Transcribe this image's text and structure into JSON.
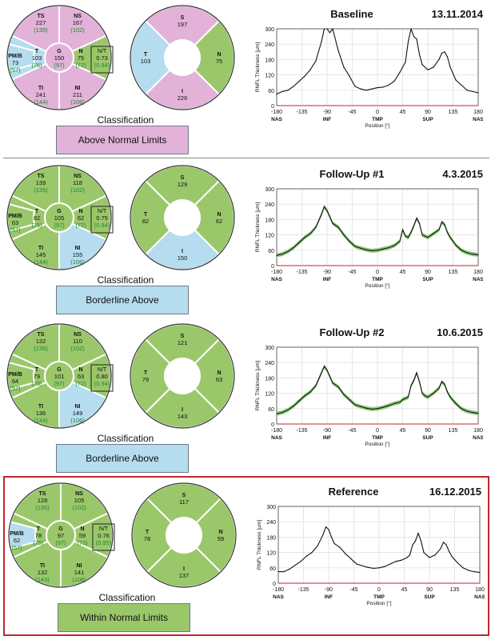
{
  "colors": {
    "green": "#9bc76b",
    "blue": "#b5dcef",
    "pink": "#e2b2d9",
    "normal_value": "#1a8a2a",
    "reference_border": "#c0262c",
    "trace": "#111111",
    "band": "#7fc36b",
    "baseline_red": "#c0262c"
  },
  "classification_label": "Classification",
  "axis": {
    "x_ticks": [
      "-180",
      "-135",
      "-90",
      "-45",
      "0",
      "45",
      "90",
      "135",
      "180"
    ],
    "x_ticks_values": [
      -180,
      -135,
      -90,
      -45,
      0,
      45,
      90,
      135,
      180
    ],
    "x_sublabels": [
      "NAS",
      "INF",
      "TMP",
      "SUP",
      "NAS"
    ],
    "x_sublabels_at": [
      -180,
      -90,
      0,
      90,
      180
    ],
    "y_ticks": [
      "0",
      "60",
      "120",
      "180",
      "240",
      "300"
    ],
    "ylabel": "RNFL Thickness [µm]",
    "xlabel": "Position [°]"
  },
  "panels": [
    {
      "title": "Baseline",
      "date": "13.11.2014",
      "classification": "Above Normal Limits",
      "class_color": "pink",
      "sectors": {
        "TS": {
          "label": "TS",
          "value": "227",
          "normal": "(135)",
          "color": "pink"
        },
        "NS": {
          "label": "NS",
          "value": "167",
          "normal": "(102)",
          "color": "pink"
        },
        "T": {
          "label": "T",
          "value": "103",
          "normal": "(76)",
          "color": "blue"
        },
        "G": {
          "label": "G",
          "value": "150",
          "normal": "(97)",
          "color": "pink"
        },
        "N": {
          "label": "N",
          "value": "75",
          "normal": "(72)",
          "color": "green"
        },
        "TI": {
          "label": "TI",
          "value": "241",
          "normal": "(144)",
          "color": "pink"
        },
        "NI": {
          "label": "NI",
          "value": "211",
          "normal": "(106)",
          "color": "pink"
        },
        "PMB": {
          "label": "PM/B",
          "value": "73",
          "normal": "(57)",
          "color": "blue"
        },
        "NT": {
          "label": "N/T",
          "value": "0.73",
          "normal": "(0.94)"
        }
      },
      "quadrants": {
        "S": {
          "label": "S",
          "value": "197",
          "color": "pink"
        },
        "T": {
          "label": "T",
          "value": "103",
          "color": "blue"
        },
        "N": {
          "label": "N",
          "value": "75",
          "color": "green"
        },
        "I": {
          "label": "I",
          "value": "226",
          "color": "pink"
        }
      },
      "has_band": false,
      "chart_data": {
        "type": "line",
        "x": [
          -180,
          -170,
          -160,
          -150,
          -140,
          -130,
          -120,
          -110,
          -100,
          -95,
          -90,
          -85,
          -80,
          -70,
          -60,
          -50,
          -45,
          -40,
          -30,
          -20,
          -10,
          0,
          10,
          20,
          30,
          40,
          45,
          50,
          55,
          60,
          65,
          70,
          75,
          80,
          85,
          90,
          100,
          110,
          115,
          120,
          125,
          130,
          140,
          150,
          160,
          170,
          180
        ],
        "y": [
          45,
          55,
          60,
          75,
          95,
          115,
          140,
          175,
          250,
          300,
          300,
          285,
          300,
          215,
          150,
          115,
          95,
          75,
          65,
          60,
          65,
          70,
          72,
          80,
          95,
          130,
          150,
          170,
          250,
          300,
          270,
          260,
          200,
          160,
          150,
          140,
          150,
          180,
          205,
          210,
          190,
          150,
          100,
          80,
          60,
          55,
          50
        ],
        "series": [
          {
            "name": "",
            "color": "#111111"
          }
        ],
        "xlim": [
          -180,
          180
        ],
        "ylim": [
          0,
          300
        ]
      }
    },
    {
      "title": "Follow-Up #1",
      "date": "4.3.2015",
      "classification": "Borderline Above",
      "class_color": "blue",
      "sectors": {
        "TS": {
          "label": "TS",
          "value": "139",
          "normal": "(135)",
          "color": "green"
        },
        "NS": {
          "label": "NS",
          "value": "118",
          "normal": "(102)",
          "color": "green"
        },
        "T": {
          "label": "T",
          "value": "82",
          "normal": "(75)",
          "color": "green"
        },
        "G": {
          "label": "G",
          "value": "105",
          "normal": "(97)",
          "color": "green"
        },
        "N": {
          "label": "N",
          "value": "62",
          "normal": "(72)",
          "color": "green"
        },
        "TI": {
          "label": "TI",
          "value": "145",
          "normal": "(144)",
          "color": "green"
        },
        "NI": {
          "label": "NI",
          "value": "155",
          "normal": "(106)",
          "color": "blue"
        },
        "PMB": {
          "label": "PM/B",
          "value": "63",
          "normal": "(57)",
          "color": "green"
        },
        "NT": {
          "label": "N/T",
          "value": "0.75",
          "normal": "(0.94)"
        }
      },
      "quadrants": {
        "S": {
          "label": "S",
          "value": "129",
          "color": "green"
        },
        "T": {
          "label": "T",
          "value": "82",
          "color": "green"
        },
        "N": {
          "label": "N",
          "value": "62",
          "color": "green"
        },
        "I": {
          "label": "I",
          "value": "150",
          "color": "blue"
        }
      },
      "has_band": true,
      "chart_data": {
        "type": "line",
        "x": [
          -180,
          -170,
          -160,
          -150,
          -140,
          -130,
          -120,
          -110,
          -100,
          -95,
          -90,
          -85,
          -80,
          -70,
          -60,
          -50,
          -45,
          -40,
          -30,
          -20,
          -10,
          0,
          10,
          20,
          30,
          40,
          45,
          50,
          55,
          60,
          65,
          70,
          75,
          80,
          85,
          90,
          100,
          110,
          115,
          120,
          125,
          130,
          140,
          150,
          160,
          170,
          180
        ],
        "y": [
          40,
          45,
          55,
          70,
          90,
          110,
          125,
          150,
          200,
          230,
          215,
          190,
          165,
          150,
          120,
          95,
          85,
          75,
          68,
          62,
          58,
          60,
          65,
          70,
          78,
          95,
          140,
          115,
          110,
          130,
          155,
          185,
          165,
          120,
          115,
          110,
          125,
          140,
          170,
          160,
          130,
          110,
          80,
          60,
          50,
          45,
          42
        ],
        "series": [
          {
            "name": "",
            "color": "#111111"
          }
        ],
        "xlim": [
          -180,
          180
        ],
        "ylim": [
          0,
          300
        ]
      }
    },
    {
      "title": "Follow-Up #2",
      "date": "10.6.2015",
      "classification": "Borderline Above",
      "class_color": "blue",
      "sectors": {
        "TS": {
          "label": "TS",
          "value": "132",
          "normal": "(135)",
          "color": "green"
        },
        "NS": {
          "label": "NS",
          "value": "110",
          "normal": "(102)",
          "color": "green"
        },
        "T": {
          "label": "T",
          "value": "79",
          "normal": "(75)",
          "color": "green"
        },
        "G": {
          "label": "G",
          "value": "101",
          "normal": "(97)",
          "color": "green"
        },
        "N": {
          "label": "N",
          "value": "63",
          "normal": "(72)",
          "color": "green"
        },
        "TI": {
          "label": "TI",
          "value": "136",
          "normal": "(144)",
          "color": "green"
        },
        "NI": {
          "label": "NI",
          "value": "149",
          "normal": "(106)",
          "color": "blue"
        },
        "PMB": {
          "label": "PM/B",
          "value": "64",
          "normal": "(57)",
          "color": "green"
        },
        "NT": {
          "label": "N/T",
          "value": "0.80",
          "normal": "(0.94)"
        }
      },
      "quadrants": {
        "S": {
          "label": "S",
          "value": "121",
          "color": "green"
        },
        "T": {
          "label": "T",
          "value": "79",
          "color": "green"
        },
        "N": {
          "label": "N",
          "value": "63",
          "color": "green"
        },
        "I": {
          "label": "I",
          "value": "143",
          "color": "green"
        }
      },
      "has_band": true,
      "chart_data": {
        "type": "line",
        "x": [
          -180,
          -170,
          -160,
          -150,
          -140,
          -130,
          -120,
          -110,
          -100,
          -95,
          -90,
          -85,
          -80,
          -70,
          -60,
          -50,
          -45,
          -40,
          -30,
          -20,
          -10,
          0,
          10,
          20,
          30,
          40,
          45,
          50,
          55,
          60,
          65,
          70,
          75,
          80,
          85,
          90,
          100,
          110,
          115,
          120,
          125,
          130,
          140,
          150,
          160,
          170,
          180
        ],
        "y": [
          40,
          45,
          55,
          70,
          90,
          110,
          125,
          150,
          200,
          225,
          210,
          185,
          160,
          145,
          115,
          95,
          85,
          75,
          68,
          62,
          58,
          60,
          65,
          72,
          80,
          85,
          95,
          100,
          105,
          150,
          170,
          200,
          165,
          120,
          110,
          105,
          120,
          140,
          165,
          155,
          125,
          105,
          80,
          60,
          50,
          45,
          42
        ],
        "series": [
          {
            "name": "",
            "color": "#111111"
          }
        ],
        "xlim": [
          -180,
          180
        ],
        "ylim": [
          0,
          300
        ]
      }
    },
    {
      "title": "Reference",
      "date": "16.12.2015",
      "classification": "Within Normal Limits",
      "class_color": "green",
      "sectors": {
        "TS": {
          "label": "TS",
          "value": "128",
          "normal": "(135)",
          "color": "green"
        },
        "NS": {
          "label": "NS",
          "value": "105",
          "normal": "(102)",
          "color": "green"
        },
        "T": {
          "label": "T",
          "value": "78",
          "normal": "(75)",
          "color": "green"
        },
        "G": {
          "label": "G",
          "value": "97",
          "normal": "(97)",
          "color": "green"
        },
        "N": {
          "label": "N",
          "value": "59",
          "normal": "(72)",
          "color": "green"
        },
        "TI": {
          "label": "TI",
          "value": "132",
          "normal": "(143)",
          "color": "green"
        },
        "NI": {
          "label": "NI",
          "value": "141",
          "normal": "(106)",
          "color": "green"
        },
        "PMB": {
          "label": "PM/B",
          "value": "62",
          "normal": "(57)",
          "color": "blue"
        },
        "NT": {
          "label": "N/T",
          "value": "0.76",
          "normal": "(0.95)"
        }
      },
      "quadrants": {
        "S": {
          "label": "S",
          "value": "117",
          "color": "green"
        },
        "T": {
          "label": "T",
          "value": "78",
          "color": "green"
        },
        "N": {
          "label": "N",
          "value": "59",
          "color": "green"
        },
        "I": {
          "label": "I",
          "value": "137",
          "color": "green"
        }
      },
      "has_band": false,
      "chart_data": {
        "type": "line",
        "x": [
          -180,
          -170,
          -160,
          -150,
          -140,
          -130,
          -120,
          -110,
          -100,
          -95,
          -90,
          -85,
          -80,
          -70,
          -60,
          -50,
          -45,
          -40,
          -30,
          -20,
          -10,
          0,
          10,
          20,
          30,
          40,
          45,
          50,
          55,
          60,
          65,
          70,
          75,
          80,
          85,
          90,
          100,
          110,
          115,
          120,
          125,
          130,
          140,
          150,
          160,
          170,
          180
        ],
        "y": [
          45,
          45,
          55,
          70,
          85,
          105,
          120,
          145,
          190,
          220,
          210,
          180,
          155,
          140,
          115,
          95,
          85,
          75,
          68,
          62,
          58,
          60,
          65,
          75,
          85,
          90,
          95,
          100,
          110,
          150,
          165,
          195,
          165,
          120,
          110,
          100,
          110,
          135,
          160,
          150,
          125,
          105,
          80,
          60,
          50,
          45,
          42
        ],
        "series": [
          {
            "name": "",
            "color": "#111111"
          }
        ],
        "xlim": [
          -180,
          180
        ],
        "ylim": [
          0,
          300
        ]
      }
    }
  ]
}
